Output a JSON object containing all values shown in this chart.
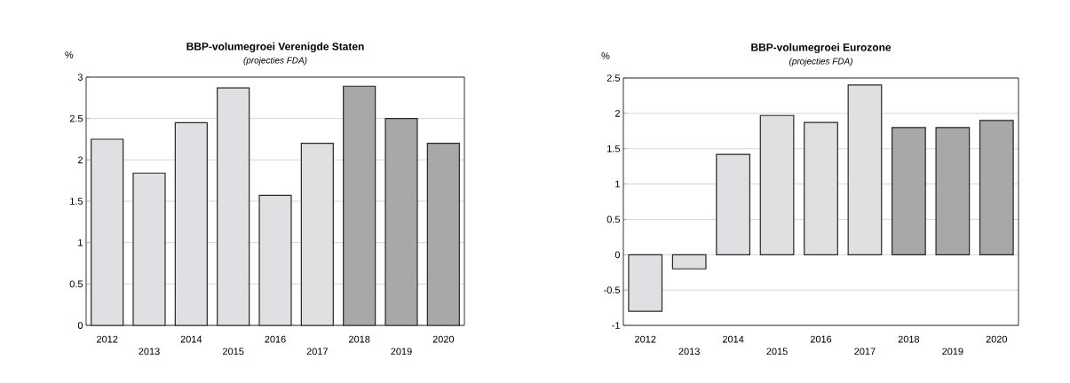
{
  "chart_data": [
    {
      "type": "bar",
      "title": "BBP-volumegroei Verenigde Staten",
      "subtitle": "*(projecties FDA)*",
      "ylabel": "%",
      "categories": [
        "2012",
        "2013",
        "2014",
        "2015",
        "2016",
        "2017",
        "2018",
        "2019",
        "2020"
      ],
      "values": [
        2.25,
        1.84,
        2.45,
        2.87,
        1.57,
        2.2,
        2.89,
        2.5,
        2.2
      ],
      "colors": [
        "#e0e0e2",
        "#e0e0e2",
        "#e0e0e2",
        "#e0e0e2",
        "#e0e0e2",
        "#e0e0e2",
        "#a8a8a8",
        "#a8a8a8",
        "#a8a8a8"
      ],
      "ylim": [
        0,
        3
      ],
      "yticks": [
        0,
        0.5,
        1,
        1.5,
        2,
        2.5,
        3
      ],
      "grid": "y"
    },
    {
      "type": "bar",
      "title": "BBP-volumegroei Eurozone",
      "subtitle": "*(projecties FDA)*",
      "ylabel": "%",
      "categories": [
        "2012",
        "2013",
        "2014",
        "2015",
        "2016",
        "2017",
        "2018",
        "2019",
        "2020"
      ],
      "values": [
        -0.8,
        -0.2,
        1.42,
        1.97,
        1.87,
        2.4,
        1.8,
        1.8,
        1.9
      ],
      "colors": [
        "#e0e0e2",
        "#e0e0e2",
        "#e0e0e2",
        "#e0e0e2",
        "#e0e0e2",
        "#e0e0e2",
        "#a8a8a8",
        "#a8a8a8",
        "#a8a8a8"
      ],
      "ylim": [
        -1,
        2.5
      ],
      "yticks": [
        -1,
        -0.5,
        0,
        0.5,
        1,
        1.5,
        2,
        2.5
      ],
      "grid": "y"
    }
  ]
}
